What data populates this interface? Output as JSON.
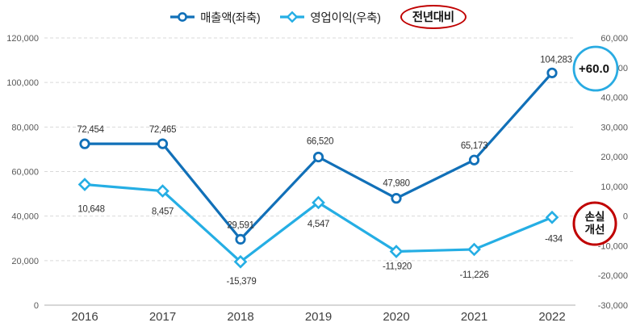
{
  "chart_data": {
    "type": "line",
    "title": "",
    "categories": [
      "2016",
      "2017",
      "2018",
      "2019",
      "2020",
      "2021",
      "2022"
    ],
    "series": [
      {
        "name": "매출액(좌축)",
        "axis": "left",
        "marker": "circle",
        "color": "#1170B8",
        "values": [
          72454,
          72465,
          29591,
          66520,
          47980,
          65173,
          104283
        ],
        "labels": [
          "72,454",
          "72,465",
          "29,591",
          "66,520",
          "47,980",
          "65,173",
          "104,283"
        ]
      },
      {
        "name": "영업이익(우축)",
        "axis": "right",
        "marker": "diamond",
        "color": "#25AEE4",
        "values": [
          10648,
          8457,
          -15379,
          4547,
          -11920,
          -11226,
          -434
        ],
        "labels": [
          "10,648",
          "8,457",
          "-15,379",
          "4,547",
          "-11,920",
          "-11,226",
          "-434"
        ]
      }
    ],
    "left_axis": {
      "min": 0,
      "max": 120000,
      "tick_step": 20000,
      "ticks": [
        "0",
        "20,000",
        "40,000",
        "60,000",
        "80,000",
        "100,000",
        "120,000"
      ]
    },
    "right_axis": {
      "min": -30000,
      "max": 60000,
      "tick_step": 10000,
      "ticks": [
        "-30,000",
        "-20,000",
        "-10,000",
        "0",
        "10,000",
        "20,000",
        "30,000",
        "40,000",
        "50,000",
        "60,000"
      ]
    },
    "grid": "horizontal-dashed",
    "legend_position": "top"
  },
  "annotations": {
    "yoy": {
      "text": "전년대비",
      "shape": "ellipse",
      "stroke": "#C00000"
    },
    "growth": {
      "text": "+60.0",
      "shape": "circle",
      "stroke": "#29ABE2"
    },
    "loss_improvement": {
      "lines": [
        "손실",
        "개선"
      ],
      "shape": "circle",
      "stroke": "#C00000"
    }
  },
  "colors": {
    "revenue_line": "#1170B8",
    "profit_line": "#25AEE4",
    "annotation_red": "#C00000",
    "annotation_blue": "#29ABE2",
    "gridline": "#D9D9D9",
    "axis_line": "#BFBFBF",
    "tick_text": "#595959",
    "data_label_text": "#333333",
    "year_text": "#404040"
  }
}
